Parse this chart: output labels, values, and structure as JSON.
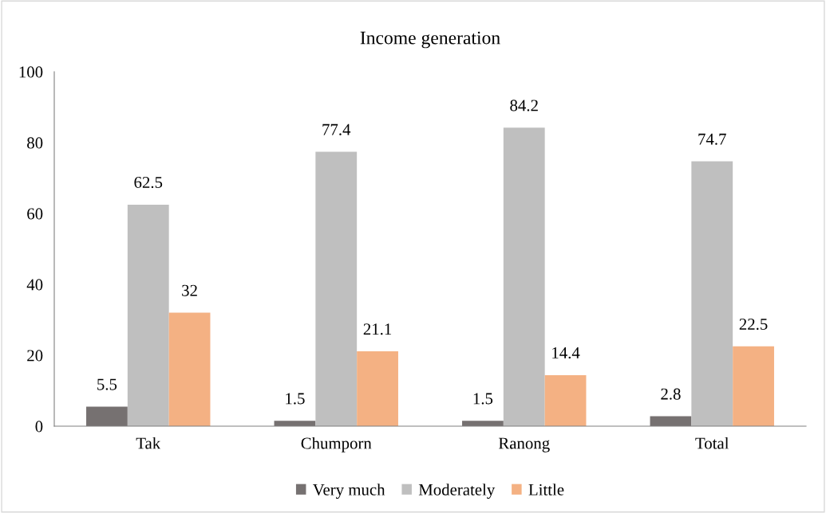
{
  "chart_data": {
    "type": "bar",
    "title": "Income generation",
    "categories": [
      "Tak",
      "Chumporn",
      "Ranong",
      "Total"
    ],
    "series": [
      {
        "name": "Very much",
        "color": "#767171",
        "values": [
          5.5,
          1.5,
          1.5,
          2.8
        ]
      },
      {
        "name": "Moderately",
        "color": "#bfbfbf",
        "values": [
          62.5,
          77.4,
          84.2,
          74.7
        ]
      },
      {
        "name": "Little",
        "color": "#f4b183",
        "values": [
          32,
          21.1,
          14.4,
          22.5
        ]
      }
    ],
    "ylim": [
      0,
      100
    ],
    "yticks": [
      0,
      20,
      40,
      60,
      80,
      100
    ],
    "grid": false,
    "legend": "bottom",
    "data_labels": true
  }
}
